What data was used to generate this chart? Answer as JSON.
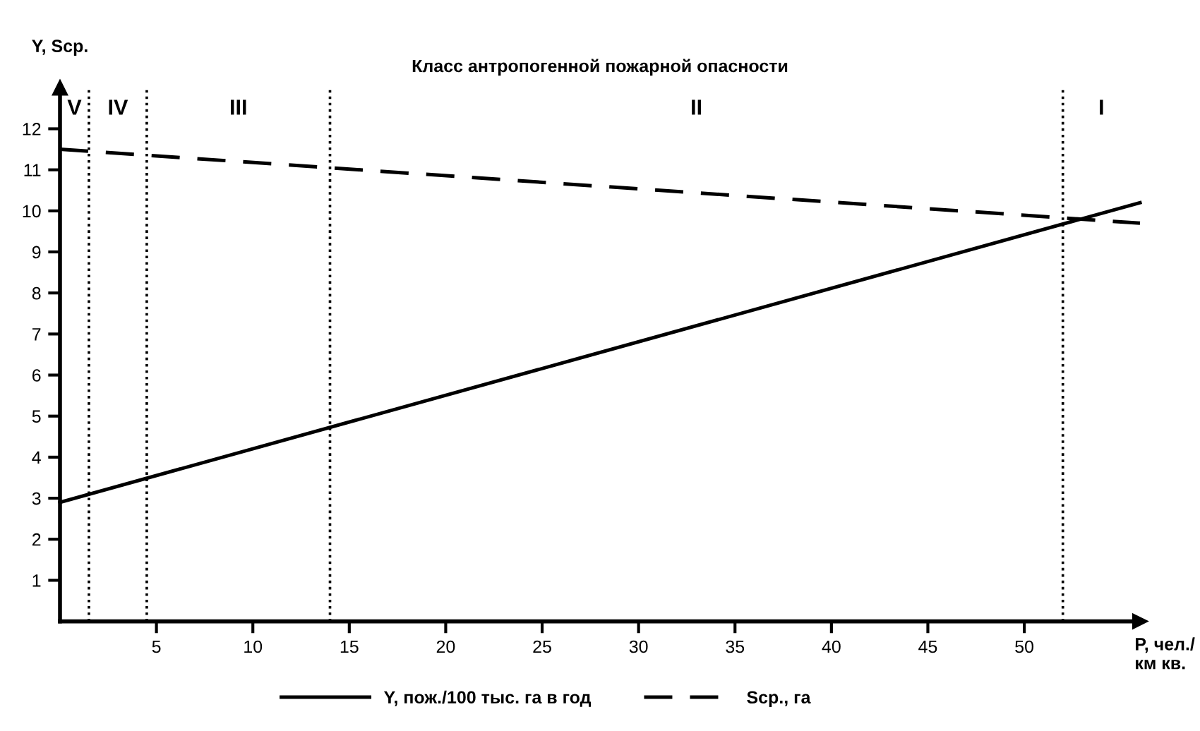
{
  "chart_data": {
    "type": "line",
    "title": "Класс антропогенной пожарной опасности",
    "xlabel": "P, чел./\nкм кв.",
    "ylabel": "Y, Scp.",
    "xlim": [
      0,
      56
    ],
    "ylim": [
      0,
      13
    ],
    "xticks": [
      5,
      10,
      15,
      20,
      25,
      30,
      35,
      40,
      45,
      50
    ],
    "yticks": [
      1,
      2,
      3,
      4,
      5,
      6,
      7,
      8,
      9,
      10,
      11,
      12
    ],
    "x": [
      0,
      56
    ],
    "series": [
      {
        "name": "Y, пож./100 тыс. га в год",
        "color": "#000000",
        "values": [
          2.9,
          10.2
        ],
        "line_style": "solid"
      },
      {
        "name": "Scp., га",
        "color": "#000000",
        "values": [
          11.5,
          9.7
        ],
        "line_style": "dashed"
      }
    ],
    "ref_lines": [
      {
        "axis": "x",
        "value": 1.5,
        "line_style": "dotted",
        "color": "#000000"
      },
      {
        "axis": "x",
        "value": 4.5,
        "line_style": "dotted",
        "color": "#000000"
      },
      {
        "axis": "x",
        "value": 14,
        "line_style": "dotted",
        "color": "#000000"
      },
      {
        "axis": "x",
        "value": 52,
        "line_style": "dotted",
        "color": "#000000"
      }
    ],
    "annotations": [
      "V",
      "IV",
      "III",
      "II",
      "I"
    ],
    "grid": false,
    "legend": "bottom",
    "marker": "none"
  }
}
